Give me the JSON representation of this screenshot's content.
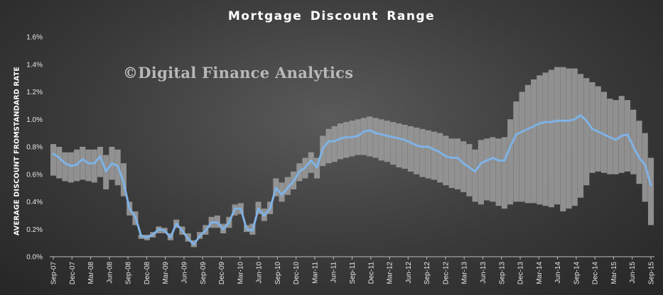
{
  "chart_data": {
    "type": "area",
    "title": "Mortgage Discount Range",
    "watermark": "©Digital Finance Analytics",
    "ylabel": "AVERAGE DISCOUNT FROMSTANDARD RATE",
    "xlabel": "",
    "ylim": [
      0,
      0.016
    ],
    "yticks": [
      0,
      0.002,
      0.004,
      0.006,
      0.008,
      0.01,
      0.012,
      0.014,
      0.016
    ],
    "ytick_labels": [
      "0.0%",
      "0.2%",
      "0.4%",
      "0.6%",
      "0.8%",
      "1.0%",
      "1.2%",
      "1.4%",
      "1.6%"
    ],
    "x_tick_labels": [
      "Sep-07",
      "Dec-07",
      "Mar-08",
      "Jun-08",
      "Sep-08",
      "Dec-08",
      "Mar-09",
      "Jun-09",
      "Sep-09",
      "Dec-09",
      "Mar-10",
      "Jun-10",
      "Sep-10",
      "Dec-10",
      "Mar-11",
      "Jun-11",
      "Sep-11",
      "Dec-11",
      "Mar-12",
      "Jun-12",
      "Sep-12",
      "Dec-12",
      "Mar-13",
      "Jun-13",
      "Sep-13",
      "Dec-13",
      "Mar-14",
      "Jun-14",
      "Sep-14",
      "Dec-14",
      "Mar-15",
      "Jun-15",
      "Sep-15"
    ],
    "grid": false,
    "legend": "none",
    "colors": {
      "line": "#7fb2e5",
      "band": "#9a9a9a"
    },
    "series": [
      {
        "values": [
          0.75,
          0.72,
          0.68,
          0.66,
          0.67,
          0.71,
          0.68,
          0.68,
          0.73,
          0.62,
          0.68,
          0.66,
          0.54,
          0.35,
          0.29,
          0.15,
          0.14,
          0.16,
          0.2,
          0.19,
          0.14,
          0.24,
          0.19,
          0.13,
          0.09,
          0.15,
          0.19,
          0.25,
          0.25,
          0.2,
          0.25,
          0.35,
          0.35,
          0.2,
          0.19,
          0.35,
          0.3,
          0.35,
          0.5,
          0.45,
          0.5,
          0.55,
          0.62,
          0.65,
          0.7,
          0.65,
          0.79,
          0.84,
          0.84,
          0.86,
          0.87,
          0.87,
          0.88,
          0.91,
          0.92,
          0.9,
          0.89,
          0.88,
          0.87,
          0.86,
          0.85,
          0.83,
          0.81,
          0.8,
          0.8,
          0.78,
          0.76,
          0.73,
          0.72,
          0.72,
          0.68,
          0.65,
          0.62,
          0.68,
          0.7,
          0.72,
          0.7,
          0.7,
          0.8,
          0.89,
          0.91,
          0.93,
          0.95,
          0.97,
          0.98,
          0.98,
          0.99,
          0.99,
          0.99,
          1.0,
          1.03,
          0.99,
          0.93,
          0.91,
          0.89,
          0.87,
          0.85,
          0.88,
          0.89,
          0.8,
          0.72,
          0.67,
          0.52
        ]
      }
    ],
    "range_band": {
      "upper": [
        0.82,
        0.8,
        0.76,
        0.76,
        0.78,
        0.8,
        0.78,
        0.78,
        0.8,
        0.74,
        0.8,
        0.78,
        0.68,
        0.4,
        0.33,
        0.16,
        0.16,
        0.18,
        0.22,
        0.21,
        0.17,
        0.27,
        0.22,
        0.17,
        0.12,
        0.18,
        0.23,
        0.29,
        0.3,
        0.24,
        0.29,
        0.38,
        0.39,
        0.23,
        0.24,
        0.4,
        0.35,
        0.4,
        0.57,
        0.54,
        0.58,
        0.62,
        0.68,
        0.72,
        0.76,
        0.72,
        0.88,
        0.93,
        0.95,
        0.97,
        0.98,
        0.99,
        1.0,
        1.01,
        1.02,
        1.01,
        1.0,
        0.99,
        0.98,
        0.97,
        0.96,
        0.95,
        0.94,
        0.93,
        0.92,
        0.91,
        0.9,
        0.88,
        0.86,
        0.86,
        0.84,
        0.82,
        0.78,
        0.85,
        0.86,
        0.87,
        0.86,
        0.87,
        1.0,
        1.13,
        1.2,
        1.25,
        1.29,
        1.32,
        1.34,
        1.36,
        1.38,
        1.38,
        1.37,
        1.37,
        1.33,
        1.3,
        1.27,
        1.24,
        1.2,
        1.15,
        1.14,
        1.17,
        1.14,
        1.07,
        0.99,
        0.9,
        0.72
      ],
      "lower": [
        0.59,
        0.57,
        0.55,
        0.54,
        0.55,
        0.56,
        0.55,
        0.54,
        0.58,
        0.49,
        0.56,
        0.52,
        0.44,
        0.3,
        0.23,
        0.13,
        0.12,
        0.14,
        0.17,
        0.17,
        0.12,
        0.21,
        0.16,
        0.11,
        0.07,
        0.13,
        0.16,
        0.21,
        0.21,
        0.17,
        0.21,
        0.3,
        0.31,
        0.18,
        0.16,
        0.31,
        0.26,
        0.31,
        0.44,
        0.4,
        0.45,
        0.49,
        0.55,
        0.57,
        0.61,
        0.57,
        0.66,
        0.68,
        0.69,
        0.71,
        0.72,
        0.73,
        0.74,
        0.74,
        0.73,
        0.72,
        0.7,
        0.69,
        0.67,
        0.65,
        0.64,
        0.62,
        0.6,
        0.58,
        0.57,
        0.56,
        0.54,
        0.52,
        0.5,
        0.49,
        0.47,
        0.44,
        0.4,
        0.38,
        0.41,
        0.4,
        0.37,
        0.35,
        0.38,
        0.4,
        0.4,
        0.39,
        0.39,
        0.38,
        0.37,
        0.36,
        0.38,
        0.33,
        0.35,
        0.37,
        0.43,
        0.52,
        0.61,
        0.62,
        0.61,
        0.6,
        0.6,
        0.61,
        0.62,
        0.6,
        0.53,
        0.4,
        0.23
      ]
    }
  }
}
